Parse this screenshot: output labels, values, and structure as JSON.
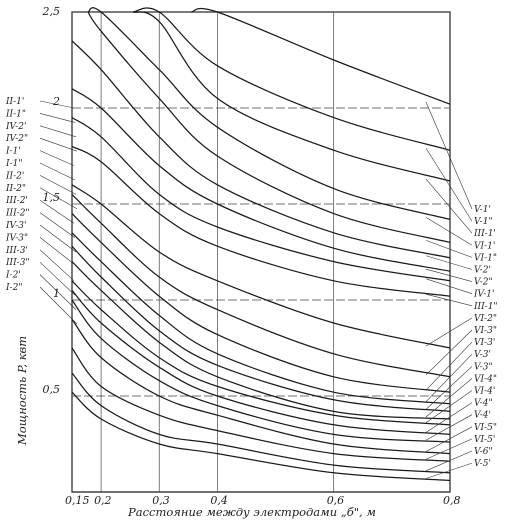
{
  "chart_data": {
    "type": "line",
    "title": "",
    "xlabel": "Расстояние между электродами „б\", м",
    "ylabel": "Мощность P, квт",
    "x_ticks": [
      "0,15",
      "0,2",
      "0,3",
      "0,4",
      "0,6",
      "0,8"
    ],
    "x_tick_values": [
      0.15,
      0.2,
      0.3,
      0.4,
      0.6,
      0.8
    ],
    "y_ticks": [
      "0,5",
      "1",
      "1,5",
      "2",
      "2,5"
    ],
    "y_tick_values": [
      0.5,
      1,
      1.5,
      2,
      2.5
    ],
    "xlim": [
      0.15,
      0.8
    ],
    "ylim": [
      0,
      2.5
    ],
    "grid": true,
    "x": [
      0.15,
      0.2,
      0.3,
      0.4,
      0.6,
      0.8
    ],
    "series": [
      {
        "values": [
          null,
          null,
          null,
          2.5,
          2.25,
          2.02
        ]
      },
      {
        "values": [
          null,
          null,
          2.5,
          2.22,
          1.95,
          1.78
        ]
      },
      {
        "values": [
          null,
          null,
          2.45,
          2.05,
          1.78,
          1.62
        ]
      },
      {
        "values": [
          null,
          2.5,
          2.2,
          1.9,
          1.58,
          1.42
        ]
      },
      {
        "values": [
          null,
          2.4,
          2.05,
          1.75,
          1.45,
          1.3
        ]
      },
      {
        "values": [
          2.35,
          2.2,
          1.85,
          1.6,
          1.35,
          1.22
        ]
      },
      {
        "values": [
          2.1,
          2.0,
          1.7,
          1.5,
          1.27,
          1.15
        ]
      },
      {
        "values": [
          1.95,
          1.85,
          1.55,
          1.38,
          1.2,
          1.1
        ]
      },
      {
        "values": [
          1.8,
          1.72,
          1.45,
          1.28,
          1.1,
          1.02
        ]
      },
      {
        "values": [
          1.6,
          1.5,
          1.25,
          1.1,
          0.88,
          0.75
        ]
      },
      {
        "values": [
          1.55,
          1.4,
          1.12,
          0.95,
          0.72,
          0.6
        ]
      },
      {
        "values": [
          1.45,
          1.3,
          1.02,
          0.82,
          0.6,
          0.52
        ]
      },
      {
        "values": [
          1.35,
          1.2,
          0.92,
          0.72,
          0.52,
          0.46
        ]
      },
      {
        "values": [
          1.28,
          1.12,
          0.84,
          0.66,
          0.48,
          0.42
        ]
      },
      {
        "values": [
          1.2,
          1.05,
          0.78,
          0.6,
          0.42,
          0.38
        ]
      },
      {
        "values": [
          1.1,
          0.95,
          0.7,
          0.55,
          0.4,
          0.35
        ]
      },
      {
        "values": [
          1.05,
          0.88,
          0.65,
          0.5,
          0.35,
          0.3
        ]
      },
      {
        "values": [
          1.0,
          0.8,
          0.58,
          0.45,
          0.3,
          0.26
        ]
      },
      {
        "values": [
          0.9,
          0.7,
          0.5,
          0.4,
          0.25,
          0.2
        ]
      },
      {
        "values": [
          0.75,
          0.55,
          0.4,
          0.32,
          0.2,
          0.16
        ]
      },
      {
        "values": [
          0.62,
          0.45,
          0.3,
          0.25,
          0.14,
          0.1
        ]
      },
      {
        "values": [
          0.52,
          0.38,
          0.25,
          0.2,
          0.1,
          0.06
        ]
      }
    ],
    "left_labels": [
      "II-1'",
      "II-1\"",
      "IV-2'",
      "IV-2\"",
      "I-1'",
      "I-1\"",
      "II-2'",
      "II-2\"",
      "III-2'",
      "III-2\"",
      "IV-3'",
      "IV-3\"",
      "III-3'",
      "III-3\"",
      "I-2'",
      "I-2\""
    ],
    "right_labels": [
      "V-1'",
      "V-1\"",
      "III-1'",
      "VI-1'",
      "VI-1\"",
      "V-2'",
      "V-2\"",
      "IV-1'",
      "III-1\"",
      "VI-2\"",
      "VI-3\"",
      "VI-3'",
      "V-3'",
      "V-3\"",
      "VI-4\"",
      "VI-4'",
      "V-4\"",
      "V-4'",
      "VI-5\"",
      "VI-5'",
      "V-6\"",
      "V-5'"
    ]
  }
}
